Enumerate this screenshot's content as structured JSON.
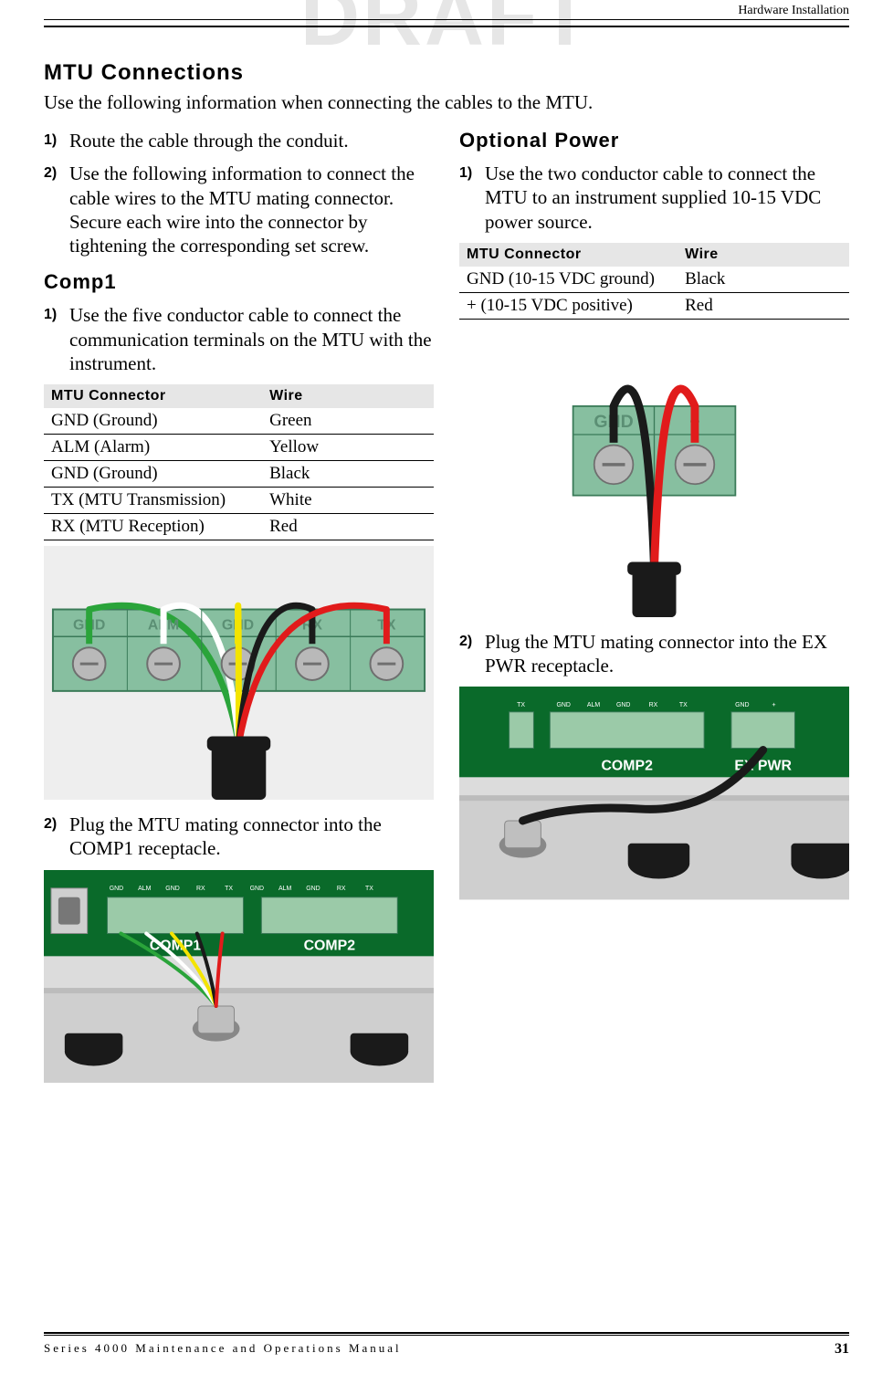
{
  "watermark": "DRAFT",
  "header": {
    "right": "Hardware Installation"
  },
  "section_title": "MTU Connections",
  "intro": "Use the following information when connecting the cables to the MTU.",
  "left": {
    "steps_top": [
      {
        "num": "1)",
        "text": "Route the cable through the conduit."
      },
      {
        "num": "2)",
        "text": "Use the following information to connect the cable wires to the MTU mating connector. Secure each wire into the connector by tightening the corresponding set screw."
      }
    ],
    "sub1": "Comp1",
    "sub1_step": {
      "num": "1)",
      "text": "Use the five conductor cable to connect the communication terminals on the MTU with the instrument."
    },
    "table1": {
      "headers": [
        "MTU Connector",
        "Wire"
      ],
      "rows": [
        [
          "GND (Ground)",
          "Green"
        ],
        [
          "ALM (Alarm)",
          "Yellow"
        ],
        [
          "GND (Ground)",
          "Black"
        ],
        [
          "TX (MTU Transmission)",
          "White"
        ],
        [
          "RX (MTU Reception)",
          "Red"
        ]
      ]
    },
    "fig1": {
      "type": "connector-wires",
      "bg": "#eeeeee",
      "block_fill": "#87bfa0",
      "block_stroke": "#3a7a58",
      "screw_fill": "#b9b9b9",
      "screw_stroke": "#6f6f6f",
      "label_color": "#5b8f74",
      "labels": [
        "GND",
        "ALM",
        "GND",
        "RX",
        "TX"
      ],
      "wire_colors": [
        "#2aa43a",
        "#ffffff",
        "#f4e400",
        "#1a1a1a",
        "#e11b1b"
      ],
      "cable_sheath": "#1a1a1a"
    },
    "step2": {
      "num": "2)",
      "text": "Plug the MTU mating connector into the COMP1 receptacle."
    },
    "fig2": {
      "type": "board-recept",
      "bg": "#dcdcdc",
      "board": "#0a6a2a",
      "silkscreen": "#ffffff",
      "labels_top": [
        "GND",
        "ALM",
        "GND",
        "RX",
        "TX",
        "GND",
        "ALM",
        "GND",
        "RX",
        "TX"
      ],
      "labels_big": [
        "COMP1",
        "COMP2"
      ],
      "connector_fill": "#9bcaa8",
      "knob_fill": "#1a1a1a",
      "wire_colors": [
        "#2aa43a",
        "#ffffff",
        "#f4e400",
        "#1a1a1a",
        "#e11b1b"
      ]
    }
  },
  "right": {
    "sub": "Optional Power",
    "step1": {
      "num": "1)",
      "text": "Use the two conductor cable to connect the MTU to an instrument supplied 10-15 VDC power source."
    },
    "table1": {
      "headers": [
        "MTU Connector",
        "Wire"
      ],
      "rows": [
        [
          "GND (10-15 VDC ground)",
          "Black"
        ],
        [
          "+ (10-15 VDC positive)",
          "Red"
        ]
      ]
    },
    "fig1": {
      "type": "connector-wires-2",
      "bg": "#eeeeee",
      "block_fill": "#87bfa0",
      "block_stroke": "#3a7a58",
      "screw_fill": "#b9b9b9",
      "screw_stroke": "#6f6f6f",
      "label_color": "#5b8f74",
      "labels": [
        "GND",
        "+"
      ],
      "wire_colors": [
        "#1a1a1a",
        "#e11b1b"
      ],
      "cable_sheath": "#1a1a1a"
    },
    "step2": {
      "num": "2)",
      "text": "Plug the MTU mating connector into the EX PWR receptacle."
    },
    "fig2": {
      "type": "board-recept-2",
      "bg": "#dcdcdc",
      "board": "#0a6a2a",
      "silkscreen": "#ffffff",
      "labels_top": [
        "TX",
        "GND",
        "ALM",
        "GND",
        "RX",
        "TX",
        "GND",
        "+"
      ],
      "labels_big": [
        "COMP2",
        "EX PWR"
      ],
      "connector_fill": "#9bcaa8",
      "knob_fill": "#1a1a1a",
      "wire_color": "#1a1a1a"
    }
  },
  "footer": {
    "left": "Series 4000 Maintenance and Operations Manual",
    "page": "31"
  }
}
